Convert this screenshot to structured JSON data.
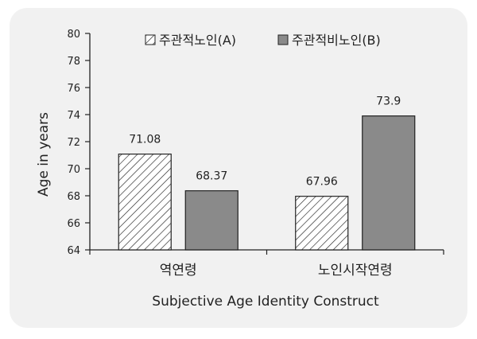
{
  "chart_data": {
    "type": "bar",
    "categories": [
      "역연령",
      "노인시작연령"
    ],
    "series": [
      {
        "name": "주관적노인(A)",
        "values": [
          71.08,
          67.96
        ],
        "pattern": "hatch",
        "color": "#ffffff"
      },
      {
        "name": "주관적비노인(B)",
        "values": [
          68.37,
          73.9
        ],
        "pattern": "solid",
        "color": "#8a8a8a"
      }
    ],
    "data_labels": [
      [
        "71.08",
        "67.96"
      ],
      [
        "68.37",
        "73.9"
      ]
    ],
    "xlabel": "Subjective Age Identity Construct",
    "ylabel": "Age in years",
    "ylim": [
      64,
      80
    ],
    "yticks": [
      64,
      66,
      68,
      70,
      72,
      74,
      76,
      78,
      80
    ],
    "grid": false,
    "legend_position": "top"
  }
}
